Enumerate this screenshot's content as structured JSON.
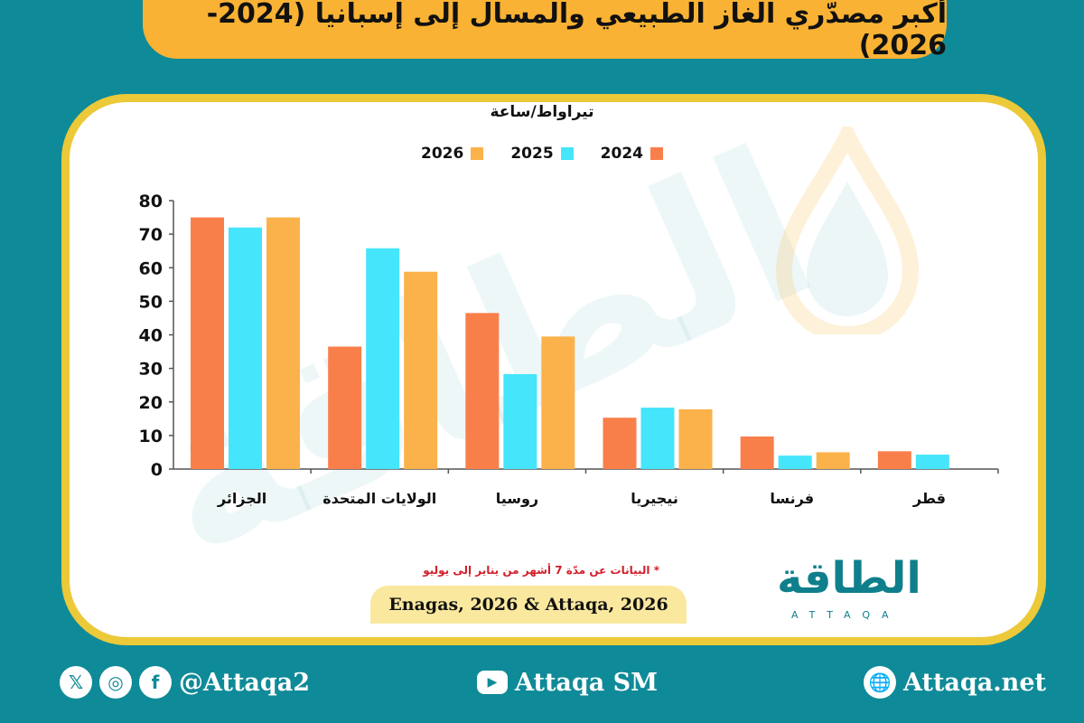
{
  "header": {
    "title": "أكبر مصدّري الغاز الطبيعي والمسال إلى إسبانيا (2024-2026)"
  },
  "chart_data": {
    "type": "bar",
    "ylabel": "تيراواط/ساعة",
    "ylim": [
      0,
      80
    ],
    "yticks": [
      0,
      10,
      20,
      30,
      40,
      50,
      60,
      70,
      80
    ],
    "categories": [
      "الجزائر",
      "الولايات المتحدة",
      "روسيا",
      "نيجيريا",
      "فرنسا",
      "قطر"
    ],
    "series": [
      {
        "name": "2024",
        "color": "#f97f4a",
        "values": [
          75,
          36.5,
          46.5,
          15.3,
          9.7,
          5.3
        ]
      },
      {
        "name": "2025",
        "color": "#45e5fc",
        "values": [
          72,
          65.8,
          28.3,
          18.3,
          4,
          4.3
        ]
      },
      {
        "name": "2026",
        "color": "#fbb24a",
        "values": [
          75,
          58.8,
          39.5,
          17.8,
          5,
          null
        ]
      }
    ],
    "legend_position": "top-center",
    "grid": false
  },
  "note": "* البيانات عن مدّة 7 أشهر من يناير إلى يوليو",
  "source": "Enagas, 2026 & Attaqa, 2026",
  "logo": {
    "text": "الطاقة",
    "subtext": "ATTAQA"
  },
  "watermark": "الطاقة",
  "footer": {
    "social_handle": "@Attaqa2",
    "youtube": "Attaqa SM",
    "website": "Attaqa.net",
    "icons": [
      "x-icon",
      "instagram-icon",
      "facebook-icon",
      "youtube-icon",
      "globe-icon"
    ]
  }
}
